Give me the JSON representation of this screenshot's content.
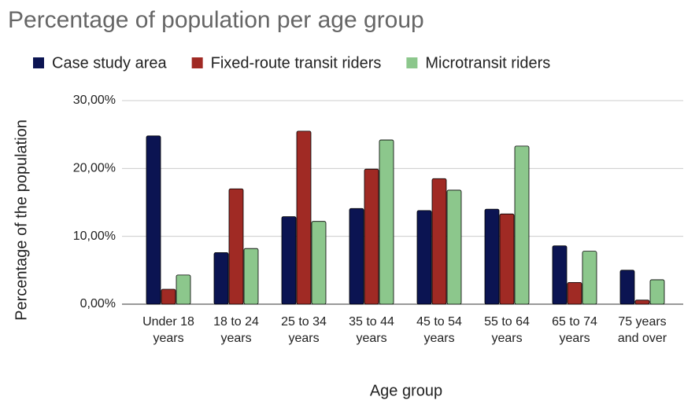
{
  "chart_data": {
    "type": "bar",
    "title": "Percentage of population per age group",
    "x_label": "Age group",
    "y_label": "Percentage of the population",
    "categories": [
      "Under 18 years",
      "18 to 24 years",
      "25 to 34 years",
      "35 to 44 years",
      "45 to 54 years",
      "55 to 64 years",
      "65 to 74 years",
      "75 years and over"
    ],
    "series": [
      {
        "name": "Case study area",
        "color": "#0b1452",
        "values": [
          24.8,
          7.6,
          12.9,
          14.1,
          13.8,
          14.0,
          8.6,
          5.0
        ]
      },
      {
        "name": "Fixed-route transit riders",
        "color": "#a02a24",
        "values": [
          2.2,
          17.0,
          25.5,
          19.9,
          18.5,
          13.3,
          3.2,
          0.6
        ]
      },
      {
        "name": "Microtransit riders",
        "color": "#8cc78c",
        "values": [
          4.3,
          8.2,
          12.2,
          24.2,
          16.8,
          23.3,
          7.8,
          3.6
        ]
      }
    ],
    "ylim": [
      0,
      30
    ],
    "yticks": [
      {
        "value": 0,
        "label": "0,00%"
      },
      {
        "value": 10,
        "label": "10,00%"
      },
      {
        "value": 20,
        "label": "20,00%"
      },
      {
        "value": 30,
        "label": "30,00%"
      }
    ],
    "grid": true,
    "legend": "top"
  }
}
